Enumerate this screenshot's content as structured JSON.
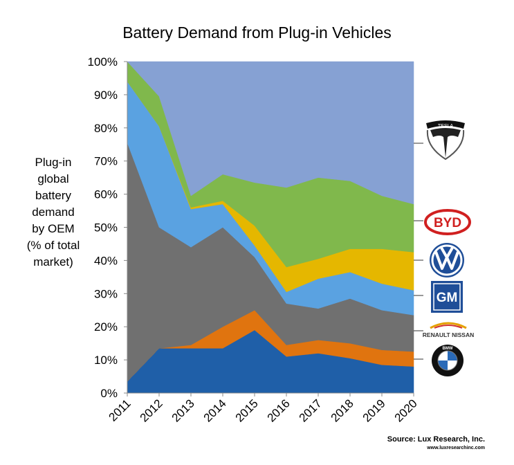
{
  "chart_data": {
    "type": "area",
    "stacked": true,
    "percent": true,
    "title": "Battery Demand from Plug-in Vehicles",
    "ylabel_lines": [
      "Plug-in",
      "global",
      "battery",
      "demand",
      "by OEM",
      "(% of total",
      "market)"
    ],
    "xlabel": "",
    "ylim": [
      0,
      100
    ],
    "yticks": [
      "0%",
      "10%",
      "20%",
      "30%",
      "40%",
      "50%",
      "60%",
      "70%",
      "80%",
      "90%",
      "100%"
    ],
    "x": [
      "2011",
      "2012",
      "2013",
      "2014",
      "2015",
      "2016",
      "2017",
      "2018",
      "2019",
      "2020"
    ],
    "series": [
      {
        "color": "#1f5fa8",
        "values": [
          3.5,
          13.5,
          13.5,
          13.5,
          19.0,
          11.0,
          12.0,
          10.5,
          8.5,
          8.0
        ]
      },
      {
        "color": "#e0740f",
        "values": [
          0.0,
          0.0,
          1.0,
          6.5,
          6.0,
          3.5,
          4.0,
          4.5,
          4.5,
          4.5
        ]
      },
      {
        "color": "#707070",
        "values": [
          72.0,
          36.5,
          29.5,
          30.0,
          16.0,
          12.5,
          9.5,
          13.5,
          12.0,
          11.0
        ]
      },
      {
        "color": "#5aa2e1",
        "values": [
          18.5,
          30.5,
          11.5,
          7.0,
          3.5,
          3.5,
          9.0,
          8.0,
          8.0,
          7.5
        ]
      },
      {
        "color": "#e5b700",
        "values": [
          0.0,
          0.0,
          0.5,
          1.0,
          6.0,
          7.5,
          6.0,
          7.0,
          10.5,
          11.5
        ]
      },
      {
        "color": "#80b84c",
        "values": [
          6.0,
          9.0,
          3.5,
          8.0,
          13.0,
          24.0,
          24.5,
          20.5,
          16.0,
          14.5
        ]
      },
      {
        "color": "#86a1d3",
        "values": [
          0.0,
          10.5,
          40.5,
          34.0,
          36.5,
          38.0,
          35.0,
          36.0,
          40.5,
          43.0
        ]
      }
    ],
    "grid": false,
    "legend": "logos-right"
  },
  "logos": {
    "tesla": "TESLA",
    "byd": "BYD",
    "vw": "VW",
    "gm": "GM",
    "renault_nissan": "RENAULT NISSAN",
    "bmw": "BMW"
  },
  "source": "Source: Lux Research, Inc.",
  "source_url": "www.luxresearchinc.com"
}
